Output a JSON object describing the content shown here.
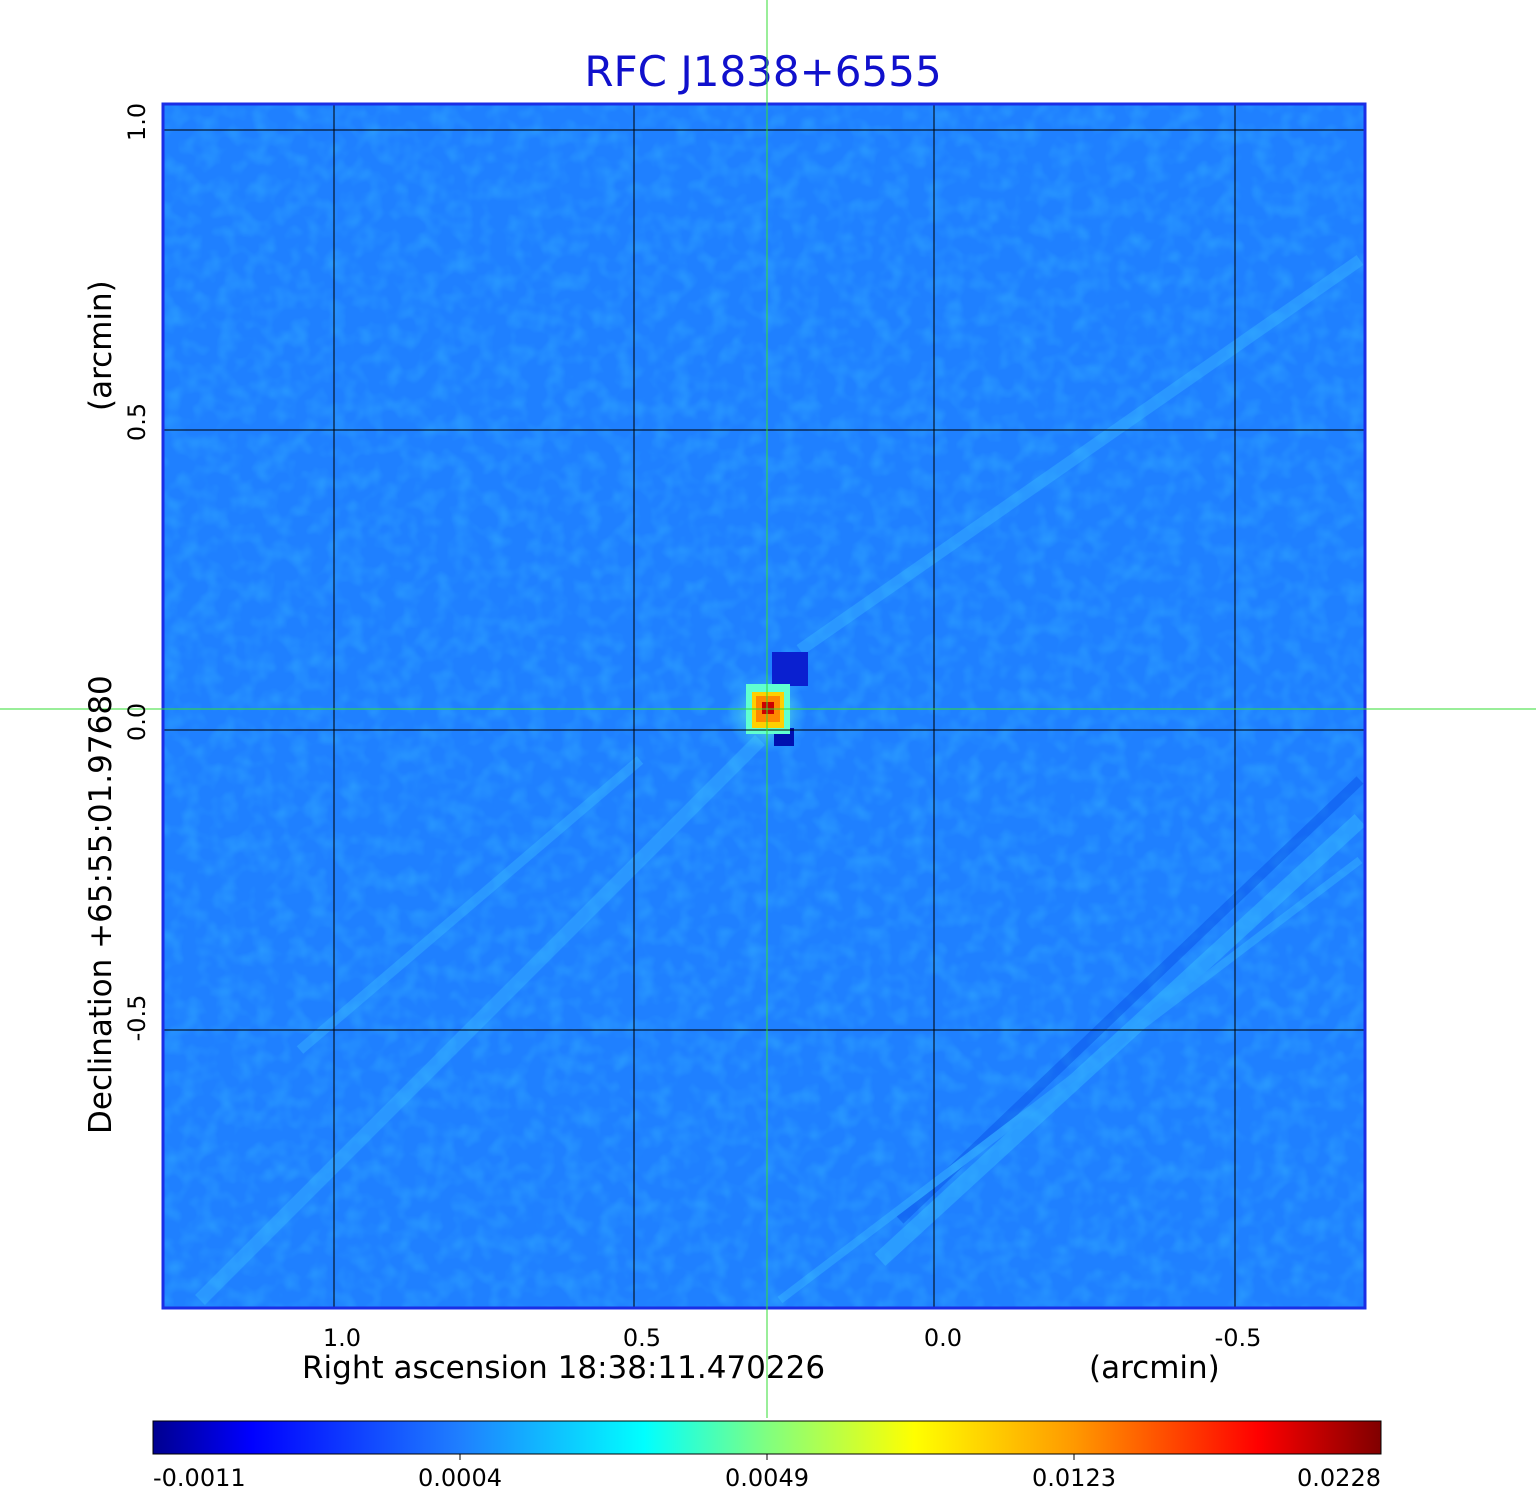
{
  "title": "RFC J1838+6555",
  "x_axis": {
    "label": "Right ascension  18:38:11.470226",
    "unit": "(arcmin)",
    "ticks": [
      "1.0",
      "0.5",
      "0.0",
      "-0.5"
    ]
  },
  "y_axis": {
    "label": "Declination  +65:55:01.97680",
    "unit": "(arcmin)",
    "ticks": [
      "1.0",
      "0.5",
      "0.0",
      "-0.5"
    ]
  },
  "colorbar": {
    "ticks": [
      "-0.0011",
      "0.0004",
      "0.0049",
      "0.0123",
      "0.0228"
    ],
    "colormap": "jet"
  },
  "colors": {
    "title": "#1010cc",
    "frame": "#1a2ee6",
    "background_field": "#1f7fff",
    "grid": "#000000",
    "crosshair": "#33dd33"
  }
}
